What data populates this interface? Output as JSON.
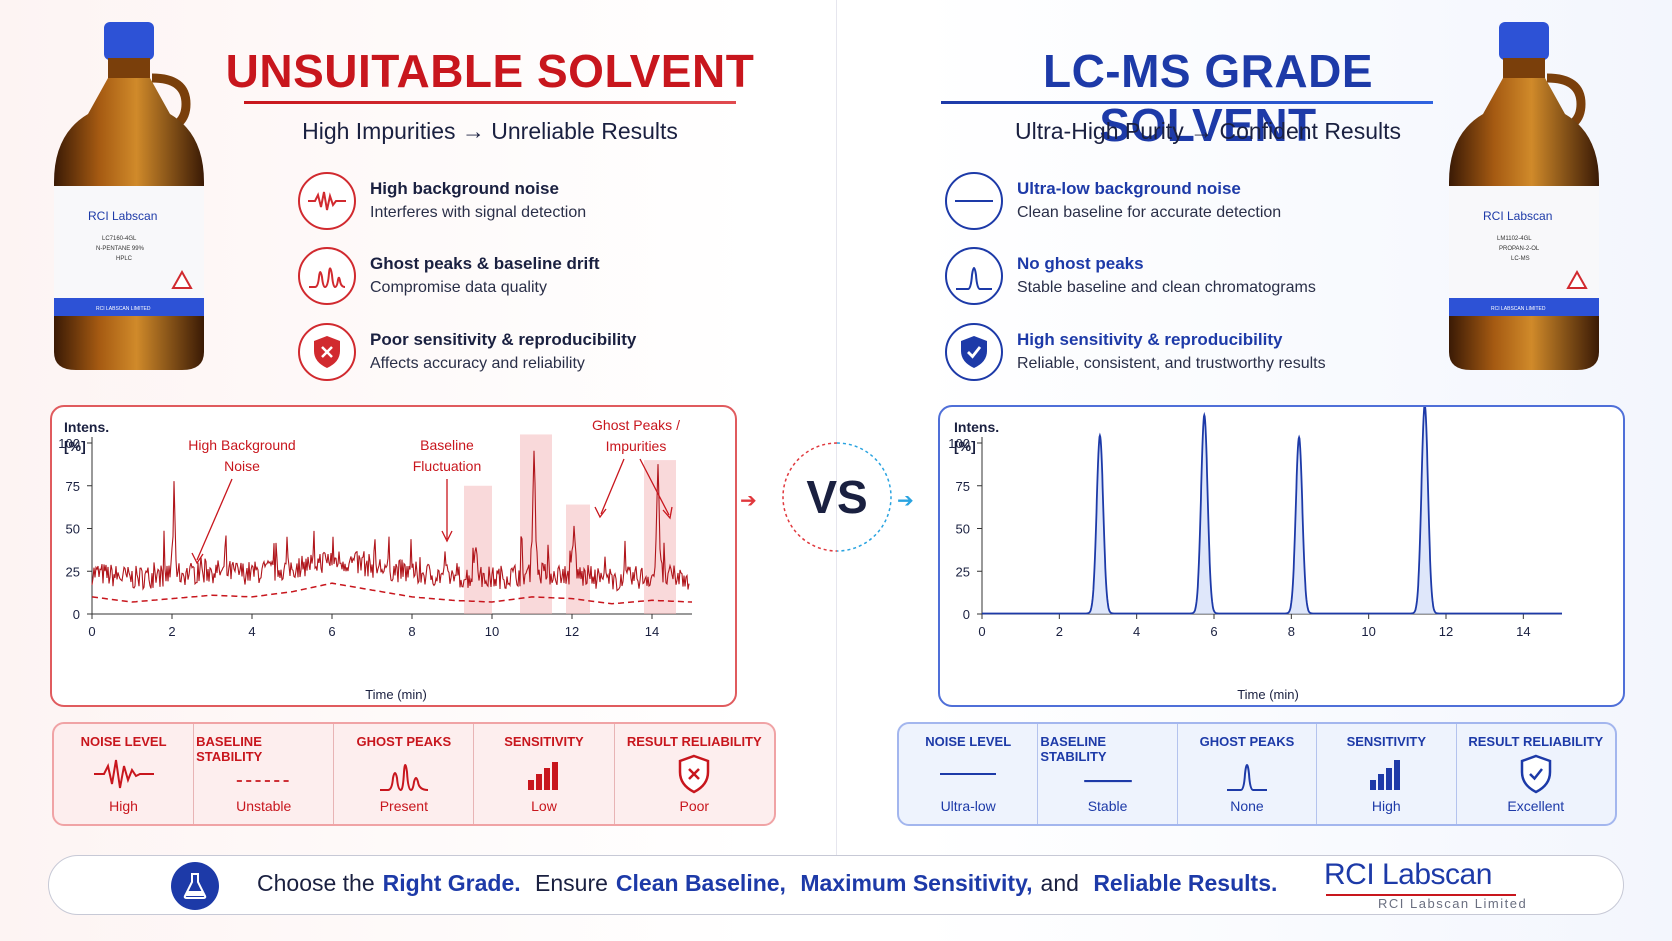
{
  "left": {
    "title": "UNSUITABLE SOLVENT",
    "subtitle": "High Impurities → Unreliable Results",
    "bottle_label": {
      "brand": "RCI Labscan",
      "code": "LC7160-4GL",
      "product": "N-PENTANE 99%",
      "grade": "HPLC",
      "footer": "RCI LABSCAN LIMITED"
    },
    "features": [
      {
        "heading": "High background noise",
        "desc": "Interferes with signal detection",
        "icon": "noise-wave-icon"
      },
      {
        "heading": "Ghost peaks & baseline drift",
        "desc": "Compromise data quality",
        "icon": "ghost-peaks-icon"
      },
      {
        "heading": "Poor sensitivity & reproducibility",
        "desc": "Affects accuracy and reliability",
        "icon": "shield-x-icon"
      }
    ],
    "chart": {
      "ylabel_1": "Intens.",
      "ylabel_2": "[%]",
      "xlabel": "Time (min)",
      "annotations": [
        {
          "text_1": "High Background",
          "text_2": "Noise"
        },
        {
          "text_1": "Baseline",
          "text_2": "Fluctuation"
        },
        {
          "text_1": "Ghost Peaks /",
          "text_2": "Impurities"
        }
      ]
    },
    "metrics": [
      {
        "label": "NOISE LEVEL",
        "value": "High",
        "icon": "noise-wave-icon"
      },
      {
        "label": "BASELINE STABILITY",
        "value": "Unstable",
        "icon": "dashed-line-icon"
      },
      {
        "label": "GHOST PEAKS",
        "value": "Present",
        "icon": "ghost-peaks-icon"
      },
      {
        "label": "SENSITIVITY",
        "value": "Low",
        "icon": "signal-bars-icon"
      },
      {
        "label": "RESULT RELIABILITY",
        "value": "Poor",
        "icon": "shield-x-icon"
      }
    ]
  },
  "right": {
    "title": "LC-MS GRADE SOLVENT",
    "subtitle": "Ultra-High Purity → Confident Results",
    "bottle_label": {
      "brand": "RCI Labscan",
      "code": "LM1102-4GL",
      "product": "PROPAN-2-OL",
      "grade": "LC-MS",
      "footer": "RCI LABSCAN LIMITED"
    },
    "features": [
      {
        "heading": "Ultra-low background noise",
        "desc": "Clean baseline for accurate detection",
        "icon": "flat-line-icon"
      },
      {
        "heading": "No ghost peaks",
        "desc": "Stable baseline and clean chromatograms",
        "icon": "single-peak-icon"
      },
      {
        "heading": "High sensitivity & reproducibility",
        "desc": "Reliable, consistent, and trustworthy results",
        "icon": "shield-check-icon"
      }
    ],
    "chart": {
      "ylabel_1": "Intens.",
      "ylabel_2": "[%]",
      "xlabel": "Time (min)"
    },
    "metrics": [
      {
        "label": "NOISE LEVEL",
        "value": "Ultra-low",
        "icon": "flat-line-icon"
      },
      {
        "label": "BASELINE STABILITY",
        "value": "Stable",
        "icon": "flat-line-icon"
      },
      {
        "label": "GHOST PEAKS",
        "value": "None",
        "icon": "single-peak-icon"
      },
      {
        "label": "SENSITIVITY",
        "value": "High",
        "icon": "signal-bars-icon"
      },
      {
        "label": "RESULT RELIABILITY",
        "value": "Excellent",
        "icon": "shield-check-icon"
      }
    ]
  },
  "vs_label": "VS",
  "banner": {
    "parts": [
      {
        "text": "Choose the",
        "bold": false
      },
      {
        "text": "Right Grade.",
        "bold": true
      },
      {
        "text": "Ensure",
        "bold": false
      },
      {
        "text": "Clean Baseline,",
        "bold": true
      },
      {
        "text": "Maximum Sensitivity,",
        "bold": true
      },
      {
        "text": "and",
        "bold": false
      },
      {
        "text": "Reliable Results.",
        "bold": true
      }
    ],
    "logo": "RCI Labscan",
    "logo_sub": "RCI Labscan Limited"
  },
  "colors": {
    "red": "#c8161d",
    "blue": "#1d3aa8",
    "cyan": "#29a3e0"
  },
  "chart_data": [
    {
      "type": "line",
      "xlabel": "Time (min)",
      "ylabel": "Intens. [%]",
      "xlim": [
        0,
        15
      ],
      "ylim": [
        0,
        100
      ],
      "x_ticks": [
        0,
        2,
        4,
        6,
        8,
        10,
        12,
        14
      ],
      "y_ticks": [
        0,
        25,
        50,
        75,
        100
      ],
      "baseline_trend": {
        "x": [
          0,
          1,
          2,
          3,
          4,
          5,
          6,
          7,
          8,
          9,
          10,
          11,
          12,
          13,
          14,
          15
        ],
        "y": [
          14,
          11,
          13,
          15,
          14,
          17,
          22,
          18,
          14,
          12,
          11,
          14,
          13,
          10,
          12,
          11
        ]
      },
      "noise_floor": 22,
      "ghost_peaks": [
        {
          "x": 2.05,
          "y": 57
        },
        {
          "x": 9.6,
          "y": 42
        },
        {
          "x": 11.05,
          "y": 93
        },
        {
          "x": 12.05,
          "y": 48
        },
        {
          "x": 14.15,
          "y": 81
        }
      ],
      "highlight_regions": [
        {
          "x": [
            9.3,
            10.0
          ],
          "y": 75
        },
        {
          "x": 10.7,
          "x_end": 11.5,
          "y": 105
        },
        {
          "x": [
            11.85,
            12.45
          ],
          "y": 64
        },
        {
          "x": [
            13.8,
            14.6
          ],
          "y": 90
        }
      ]
    },
    {
      "type": "line",
      "xlabel": "Time (min)",
      "ylabel": "Intens. [%]",
      "xlim": [
        0,
        15
      ],
      "ylim": [
        0,
        100
      ],
      "x_ticks": [
        0,
        2,
        4,
        6,
        8,
        10,
        12,
        14
      ],
      "y_ticks": [
        0,
        25,
        50,
        75,
        100
      ],
      "peaks": [
        {
          "x": 3.05,
          "y": 104
        },
        {
          "x": 5.75,
          "y": 116
        },
        {
          "x": 8.2,
          "y": 103
        },
        {
          "x": 11.45,
          "y": 122
        }
      ],
      "peak_width": 0.12
    }
  ]
}
